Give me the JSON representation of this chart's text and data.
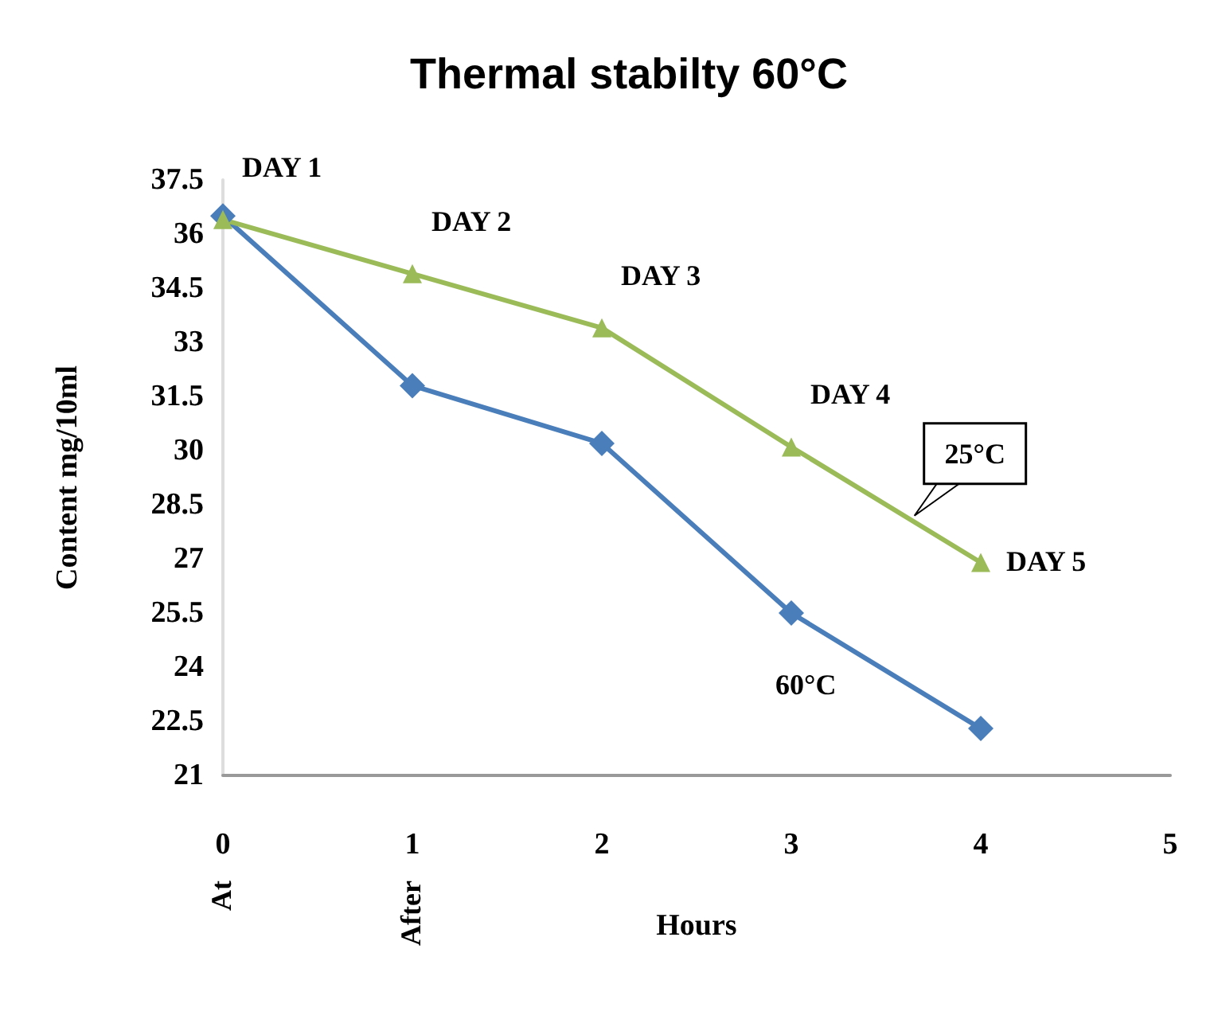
{
  "chart_data": {
    "type": "line",
    "title": "Thermal stabilty 60°C",
    "xlabel": "Hours",
    "ylabel": "Content mg/10ml",
    "x": [
      0,
      1,
      2,
      3,
      4
    ],
    "series": [
      {
        "name": "60°C",
        "color": "#4a7ebb",
        "marker": "diamond",
        "values": [
          36.5,
          31.8,
          30.2,
          25.5,
          22.3
        ]
      },
      {
        "name": "25°C",
        "color": "#9bbb59",
        "marker": "triangle",
        "values": [
          36.4,
          34.9,
          33.4,
          30.1,
          26.9
        ]
      }
    ],
    "xlim": [
      0,
      5
    ],
    "xticks": [
      0,
      1,
      2,
      3,
      4,
      5
    ],
    "ylim": [
      21,
      37.5
    ],
    "yticks": [
      21,
      22.5,
      24,
      25.5,
      27,
      28.5,
      30,
      31.5,
      33,
      34.5,
      36,
      37.5
    ],
    "annotations": [
      {
        "text": "DAY 1",
        "x": 0,
        "y": 36.4
      },
      {
        "text": "DAY 2",
        "x": 1,
        "y": 34.9
      },
      {
        "text": "DAY 3",
        "x": 2,
        "y": 33.4
      },
      {
        "text": "DAY 4",
        "x": 3,
        "y": 30.1
      },
      {
        "text": "DAY 5",
        "x": 4,
        "y": 26.9
      },
      "At",
      "After"
    ],
    "grid": false,
    "legend": false
  }
}
